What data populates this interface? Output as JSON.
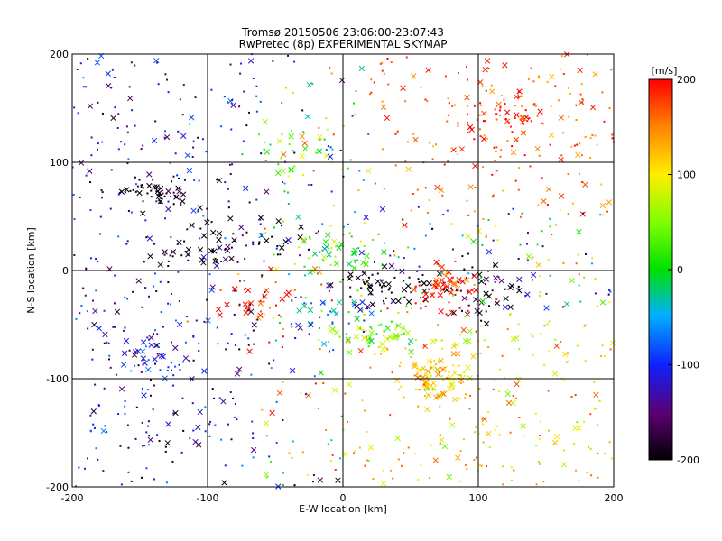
{
  "chart_data": {
    "type": "scatter",
    "title": "Tromsø 20150506 23:06:00-23:07:43",
    "subtitle": "RwPretec (8p) EXPERIMENTAL SKYMAP",
    "xlabel": "E-W location [km]",
    "ylabel": "N-S location [km]",
    "xlim": [
      -200,
      200
    ],
    "ylim": [
      -200,
      200
    ],
    "xticks": [
      "-200",
      "-100",
      "0",
      "100",
      "200"
    ],
    "yticks": [
      "-200",
      "-100",
      "0",
      "100",
      "200"
    ],
    "grid": true,
    "grid_step": 100,
    "markers": [
      "dot",
      "x"
    ],
    "colorbar": {
      "label": "[m/s]",
      "range": [
        -200,
        200
      ],
      "ticks": [
        "-200",
        "-100",
        "0",
        "100",
        "200"
      ],
      "colormap": "rainbow: black → purple → blue → cyan → green → yellow → red"
    },
    "clusters": [
      {
        "x": -105,
        "y": 18,
        "vel": -200,
        "count": 35
      },
      {
        "x": -60,
        "y": 30,
        "vel": -200,
        "count": 25
      },
      {
        "x": 30,
        "y": -15,
        "vel": -200,
        "count": 70
      },
      {
        "x": 110,
        "y": -18,
        "vel": -200,
        "count": 40
      },
      {
        "x": -40,
        "y": 115,
        "vel": 30,
        "count": 25
      },
      {
        "x": 0,
        "y": 15,
        "vel": 20,
        "count": 45
      },
      {
        "x": 75,
        "y": -15,
        "vel": 200,
        "count": 55
      },
      {
        "x": -70,
        "y": -30,
        "vel": 200,
        "count": 35
      },
      {
        "x": 70,
        "y": -100,
        "vel": 110,
        "count": 90
      },
      {
        "x": 30,
        "y": -60,
        "vel": 40,
        "count": 60
      },
      {
        "x": 0,
        "y": -40,
        "vel": -70,
        "count": 30
      },
      {
        "x": 120,
        "y": 140,
        "vel": 195,
        "count": 55
      },
      {
        "x": -140,
        "y": 70,
        "vel": -200,
        "count": 50
      },
      {
        "x": -140,
        "y": -80,
        "vel": -120,
        "count": 40
      }
    ]
  }
}
